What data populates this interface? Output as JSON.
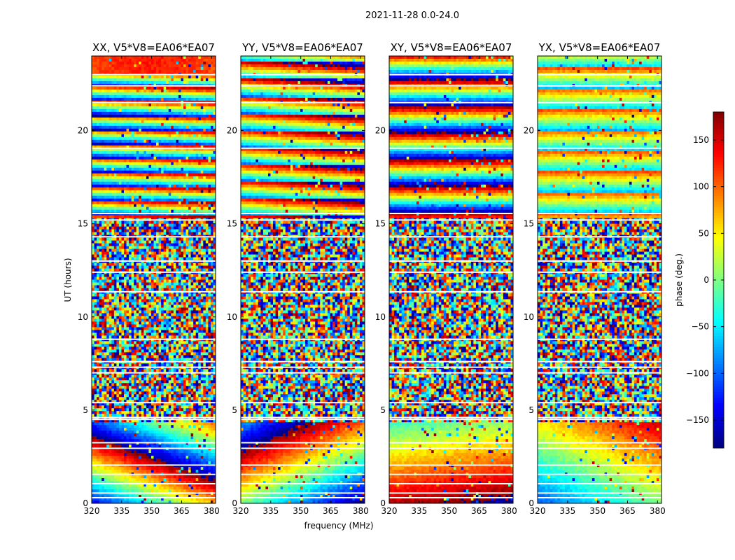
{
  "chart_data": {
    "type": "heatmap",
    "title": "2021-11-28 0.0-24.0",
    "xlabel": "frequency (MHz)",
    "ylabel": "UT (hours)",
    "xlim": [
      320,
      382
    ],
    "ylim": [
      0,
      24
    ],
    "x_ticks": [
      320,
      335,
      350,
      365,
      380
    ],
    "y_ticks": [
      0,
      5,
      10,
      15,
      20
    ],
    "panels": [
      {
        "title": "XX, V5*V8=EA06*EA07",
        "polarization": "XX"
      },
      {
        "title": "YY, V5*V8=EA06*EA07",
        "polarization": "YY"
      },
      {
        "title": "XY, V5*V8=EA06*EA07",
        "polarization": "XY"
      },
      {
        "title": "YX, V5*V8=EA06*EA07",
        "polarization": "YX"
      }
    ],
    "colorbar": {
      "label": "phase (deg.)",
      "range": [
        -180,
        180
      ],
      "ticks": [
        -150,
        -100,
        -50,
        0,
        50,
        100,
        150
      ],
      "colormap": "jet"
    }
  }
}
